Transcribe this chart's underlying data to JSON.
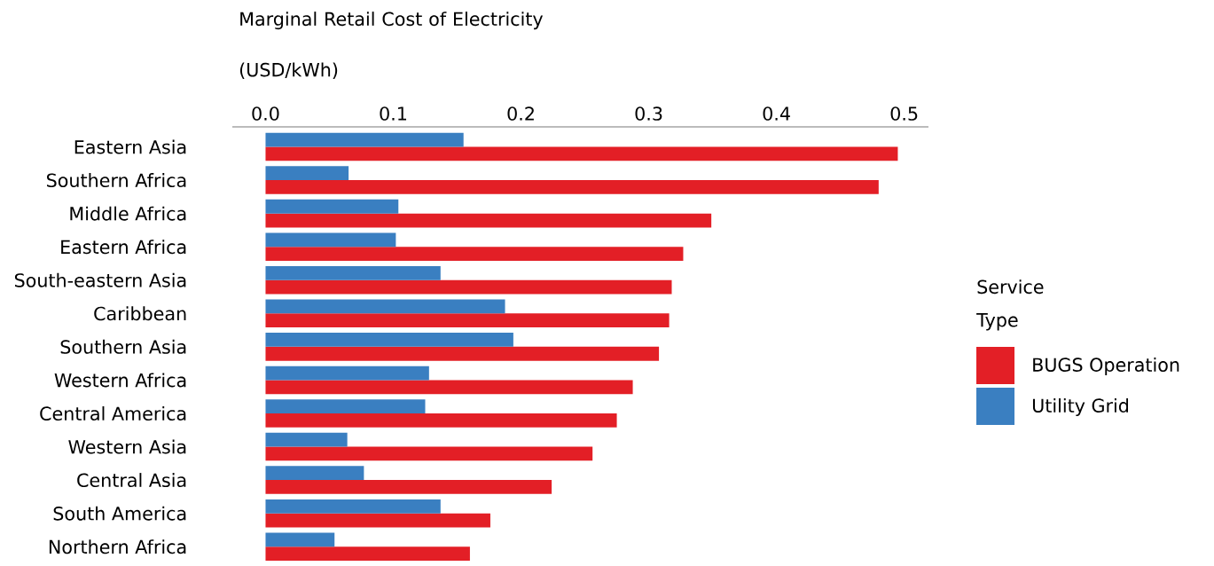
{
  "chart_data": {
    "type": "bar",
    "orientation": "horizontal",
    "xlabel": "Marginal Retail Cost of Electricity (USD/kWh)",
    "legend_title": "Service Type",
    "legend": "right",
    "grid": false,
    "categories": [
      "Eastern Asia",
      "Southern Africa",
      "Middle Africa",
      "Eastern Africa",
      "South-eastern Asia",
      "Caribbean",
      "Southern Asia",
      "Western Africa",
      "Central America",
      "Western Asia",
      "Central Asia",
      "South America",
      "Northern Africa"
    ],
    "series": [
      {
        "name": "BUGS Operation",
        "color": "#e31f26",
        "values": [
          0.495,
          0.48,
          0.349,
          0.327,
          0.318,
          0.316,
          0.308,
          0.2875,
          0.275,
          0.256,
          0.224,
          0.176,
          0.16
        ]
      },
      {
        "name": "Utility Grid",
        "color": "#3a7fc1",
        "values": [
          0.155,
          0.065,
          0.104,
          0.102,
          0.137,
          0.1875,
          0.194,
          0.128,
          0.125,
          0.064,
          0.077,
          0.137,
          0.054
        ]
      }
    ],
    "xlim": [
      -0.026,
      0.519
    ],
    "xticks": [
      {
        "value": 0,
        "label": "0.0"
      },
      {
        "value": 0.1,
        "label": "0.1"
      },
      {
        "value": 0.2,
        "label": "0.2"
      },
      {
        "value": 0.3,
        "label": "0.3"
      },
      {
        "value": 0.4,
        "label": "0.4"
      },
      {
        "value": 0.5,
        "label": "0.5"
      }
    ]
  }
}
